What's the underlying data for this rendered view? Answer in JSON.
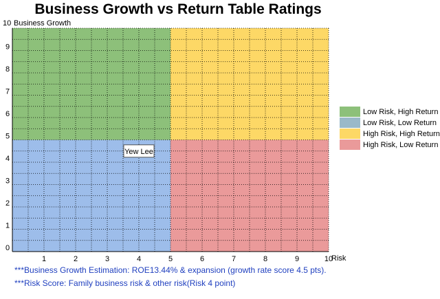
{
  "chart_data": {
    "type": "quadrant",
    "title": "Business Growth vs Return Table Ratings",
    "xlabel": "Risk",
    "ylabel": "Business Growth",
    "xlim": [
      0,
      10
    ],
    "ylim": [
      0,
      10
    ],
    "grid": true,
    "legend_position": "right",
    "x_ticks": [
      "1",
      "2",
      "3",
      "4",
      "5",
      "6",
      "7",
      "8",
      "9",
      "10"
    ],
    "y_ticks": [
      "0",
      "1",
      "2",
      "3",
      "4",
      "5",
      "6",
      "7",
      "8",
      "9",
      "10"
    ],
    "quadrants": [
      {
        "name": "Low Risk, High Return",
        "x": [
          0,
          5
        ],
        "y": [
          5,
          10
        ],
        "color": "#8dc07a"
      },
      {
        "name": "Low Risk, Low Return",
        "x": [
          0,
          5
        ],
        "y": [
          0,
          5
        ],
        "color": "#9dbdea"
      },
      {
        "name": "High Risk, High Return",
        "x": [
          5,
          10
        ],
        "y": [
          5,
          10
        ],
        "color": "#fdd866"
      },
      {
        "name": "High Risk, Low Return",
        "x": [
          5,
          10
        ],
        "y": [
          0,
          5
        ],
        "color": "#ea9a9a"
      }
    ],
    "legend": [
      {
        "label": "Low Risk, High Return",
        "color": "#8dc07a"
      },
      {
        "label": "Low Risk, Low Return",
        "color": "#9ab9c9"
      },
      {
        "label": "High Risk, High Return",
        "color": "#fdd866"
      },
      {
        "label": "High Risk, Low Return",
        "color": "#ea9a9a"
      }
    ],
    "points": [
      {
        "label": "Yew Lee",
        "x": 4,
        "y": 4.5
      }
    ]
  },
  "footnotes": [
    "***Business Growth Estimation: ROE13.44% & expansion (growth rate score 4.5 pts).",
    "***Risk Score: Family business risk & other risk(Risk 4 point)"
  ]
}
